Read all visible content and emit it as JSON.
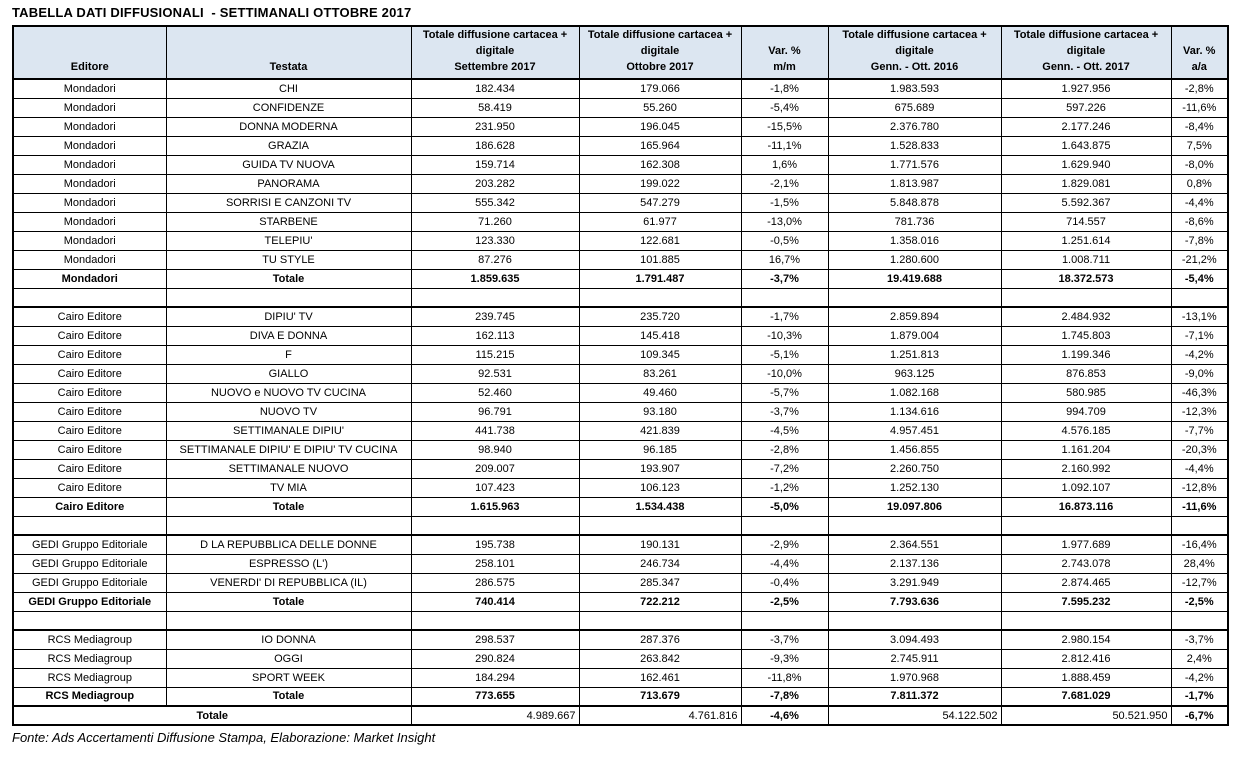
{
  "colors": {
    "header_bg": "#dce6f1",
    "border": "#000000",
    "text": "#000000",
    "page_bg": "#ffffff"
  },
  "chart_data": {
    "type": "table",
    "title": "TABELLA DATI DIFFUSIONALI  - SETTIMANALI OTTOBRE 2017",
    "source": "Fonte: Ads Accertamenti Diffusione Stampa, Elaborazione: Market Insight",
    "columns": [
      "Editore",
      "Testata",
      "Totale diffusione cartacea +\ndigitale\nSettembre 2017",
      "Totale diffusione cartacea +\ndigitale\nOttobre 2017",
      "Var. %\nm/m",
      "Totale diffusione cartacea +\ndigitale\nGenn. - Ott. 2016",
      "Totale diffusione cartacea +\ndigitale\nGenn. - Ott. 2017",
      "Var. %\na/a"
    ],
    "total_label": "Totale",
    "sections": [
      {
        "publisher": "Mondadori",
        "rows": [
          [
            "CHI",
            "182.434",
            "179.066",
            "-1,8%",
            "1.983.593",
            "1.927.956",
            "-2,8%"
          ],
          [
            "CONFIDENZE",
            "58.419",
            "55.260",
            "-5,4%",
            "675.689",
            "597.226",
            "-11,6%"
          ],
          [
            "DONNA MODERNA",
            "231.950",
            "196.045",
            "-15,5%",
            "2.376.780",
            "2.177.246",
            "-8,4%"
          ],
          [
            "GRAZIA",
            "186.628",
            "165.964",
            "-11,1%",
            "1.528.833",
            "1.643.875",
            "7,5%"
          ],
          [
            "GUIDA TV NUOVA",
            "159.714",
            "162.308",
            "1,6%",
            "1.771.576",
            "1.629.940",
            "-8,0%"
          ],
          [
            "PANORAMA",
            "203.282",
            "199.022",
            "-2,1%",
            "1.813.987",
            "1.829.081",
            "0,8%"
          ],
          [
            "SORRISI E CANZONI TV",
            "555.342",
            "547.279",
            "-1,5%",
            "5.848.878",
            "5.592.367",
            "-4,4%"
          ],
          [
            "STARBENE",
            "71.260",
            "61.977",
            "-13,0%",
            "781.736",
            "714.557",
            "-8,6%"
          ],
          [
            "TELEPIU'",
            "123.330",
            "122.681",
            "-0,5%",
            "1.358.016",
            "1.251.614",
            "-7,8%"
          ],
          [
            "TU STYLE",
            "87.276",
            "101.885",
            "16,7%",
            "1.280.600",
            "1.008.711",
            "-21,2%"
          ]
        ],
        "total": [
          "1.859.635",
          "1.791.487",
          "-3,7%",
          "19.419.688",
          "18.372.573",
          "-5,4%"
        ]
      },
      {
        "publisher": "Cairo Editore",
        "rows": [
          [
            "DIPIU' TV",
            "239.745",
            "235.720",
            "-1,7%",
            "2.859.894",
            "2.484.932",
            "-13,1%"
          ],
          [
            "DIVA E DONNA",
            "162.113",
            "145.418",
            "-10,3%",
            "1.879.004",
            "1.745.803",
            "-7,1%"
          ],
          [
            "F",
            "115.215",
            "109.345",
            "-5,1%",
            "1.251.813",
            "1.199.346",
            "-4,2%"
          ],
          [
            "GIALLO",
            "92.531",
            "83.261",
            "-10,0%",
            "963.125",
            "876.853",
            "-9,0%"
          ],
          [
            "NUOVO e NUOVO TV CUCINA",
            "52.460",
            "49.460",
            "-5,7%",
            "1.082.168",
            "580.985",
            "-46,3%"
          ],
          [
            "NUOVO TV",
            "96.791",
            "93.180",
            "-3,7%",
            "1.134.616",
            "994.709",
            "-12,3%"
          ],
          [
            "SETTIMANALE DIPIU'",
            "441.738",
            "421.839",
            "-4,5%",
            "4.957.451",
            "4.576.185",
            "-7,7%"
          ],
          [
            "SETTIMANALE DIPIU' E DIPIU' TV CUCINA",
            "98.940",
            "96.185",
            "-2,8%",
            "1.456.855",
            "1.161.204",
            "-20,3%"
          ],
          [
            "SETTIMANALE NUOVO",
            "209.007",
            "193.907",
            "-7,2%",
            "2.260.750",
            "2.160.992",
            "-4,4%"
          ],
          [
            "TV MIA",
            "107.423",
            "106.123",
            "-1,2%",
            "1.252.130",
            "1.092.107",
            "-12,8%"
          ]
        ],
        "total": [
          "1.615.963",
          "1.534.438",
          "-5,0%",
          "19.097.806",
          "16.873.116",
          "-11,6%"
        ]
      },
      {
        "publisher": "GEDI Gruppo Editoriale",
        "rows": [
          [
            "D LA REPUBBLICA DELLE DONNE",
            "195.738",
            "190.131",
            "-2,9%",
            "2.364.551",
            "1.977.689",
            "-16,4%"
          ],
          [
            "ESPRESSO (L')",
            "258.101",
            "246.734",
            "-4,4%",
            "2.137.136",
            "2.743.078",
            "28,4%"
          ],
          [
            "VENERDI' DI REPUBBLICA (IL)",
            "286.575",
            "285.347",
            "-0,4%",
            "3.291.949",
            "2.874.465",
            "-12,7%"
          ]
        ],
        "total": [
          "740.414",
          "722.212",
          "-2,5%",
          "7.793.636",
          "7.595.232",
          "-2,5%"
        ]
      },
      {
        "publisher": "RCS Mediagroup",
        "rows": [
          [
            "IO DONNA",
            "298.537",
            "287.376",
            "-3,7%",
            "3.094.493",
            "2.980.154",
            "-3,7%"
          ],
          [
            "OGGI",
            "290.824",
            "263.842",
            "-9,3%",
            "2.745.911",
            "2.812.416",
            "2,4%"
          ],
          [
            "SPORT WEEK",
            "184.294",
            "162.461",
            "-11,8%",
            "1.970.968",
            "1.888.459",
            "-4,2%"
          ]
        ],
        "total": [
          "773.655",
          "713.679",
          "-7,8%",
          "7.811.372",
          "7.681.029",
          "-1,7%"
        ]
      }
    ],
    "grand_total": {
      "label": "Totale",
      "values": [
        "4.989.667",
        "4.761.816",
        "-4,6%",
        "54.122.502",
        "50.521.950",
        "-6,7%"
      ]
    }
  }
}
